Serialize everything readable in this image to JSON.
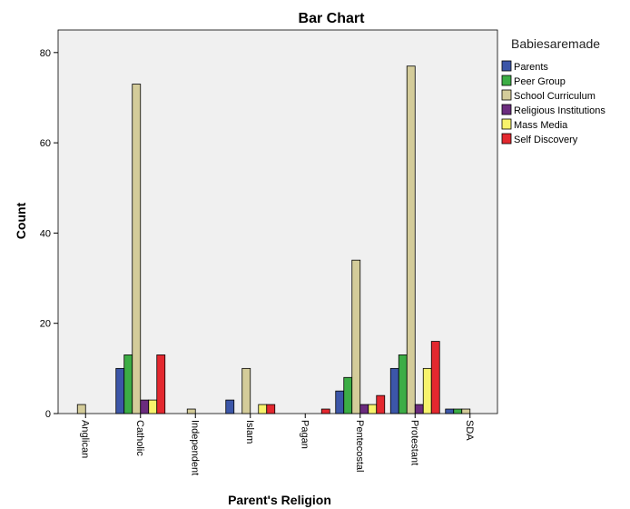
{
  "chart_data": {
    "type": "bar",
    "title": "Bar Chart",
    "xlabel": "Parent's Religion",
    "ylabel": "Count",
    "ylim": [
      0,
      85
    ],
    "yticks": [
      0,
      20,
      40,
      60,
      80
    ],
    "categories": [
      "Anglican",
      "Catholic",
      "Independent",
      "Islam",
      "Pagan",
      "Pentecostal",
      "Protestant",
      "SDA"
    ],
    "legend_title": "Babiesaremade",
    "legend_position": "right",
    "plot_background": "#f0f0f0",
    "series": [
      {
        "name": "Parents",
        "color": "#3c56a8",
        "values": [
          0,
          10,
          0,
          3,
          0,
          5,
          10,
          1
        ]
      },
      {
        "name": "Peer Group",
        "color": "#3cad45",
        "values": [
          0,
          13,
          0,
          0,
          0,
          8,
          13,
          1
        ]
      },
      {
        "name": "School Curriculum",
        "color": "#d4cc9a",
        "values": [
          2,
          73,
          1,
          10,
          0,
          34,
          77,
          1
        ]
      },
      {
        "name": "Religious Institutions",
        "color": "#6b2c7e",
        "values": [
          0,
          3,
          0,
          0,
          0,
          2,
          2,
          0
        ]
      },
      {
        "name": "Mass Media",
        "color": "#f7f36c",
        "values": [
          0,
          3,
          0,
          2,
          0,
          2,
          10,
          0
        ]
      },
      {
        "name": "Self Discovery",
        "color": "#e3282f",
        "values": [
          0,
          13,
          0,
          2,
          1,
          4,
          16,
          0
        ]
      }
    ]
  }
}
